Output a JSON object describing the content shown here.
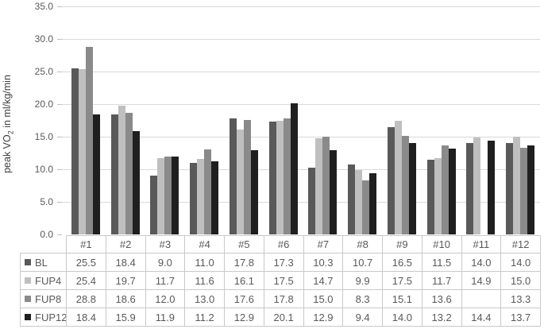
{
  "chart_data": {
    "type": "bar",
    "title": "",
    "ylabel_prefix": "peak VO",
    "ylabel_sub": "2",
    "ylabel_suffix": " in ml/kg/min",
    "categories": [
      "#1",
      "#2",
      "#3",
      "#4",
      "#5",
      "#6",
      "#7",
      "#8",
      "#9",
      "#10",
      "#11",
      "#12"
    ],
    "series": [
      {
        "name": "BL",
        "color": "#595959",
        "values": [
          25.5,
          18.4,
          9.0,
          11.0,
          17.8,
          17.3,
          10.3,
          10.7,
          16.5,
          11.5,
          14.0,
          14.0
        ]
      },
      {
        "name": "FUP4",
        "color": "#bfbfbf",
        "values": [
          25.4,
          19.7,
          11.7,
          11.6,
          16.1,
          17.5,
          14.7,
          9.9,
          17.5,
          11.7,
          14.9,
          15.0
        ]
      },
      {
        "name": "FUP8",
        "color": "#8a8a8a",
        "values": [
          28.8,
          18.6,
          12.0,
          13.0,
          17.6,
          17.8,
          15.0,
          8.3,
          15.1,
          13.6,
          null,
          13.3
        ]
      },
      {
        "name": "FUP12",
        "color": "#1f1f1f",
        "values": [
          18.4,
          15.9,
          11.9,
          11.2,
          12.9,
          20.1,
          12.9,
          9.4,
          14.0,
          13.2,
          14.4,
          13.7
        ]
      }
    ],
    "ylim": [
      0,
      35
    ],
    "ytick_step": 5,
    "ytick_labels": [
      "35.0",
      "30.0",
      "25.0",
      "20.0",
      "15.0",
      "10.0",
      "5.0",
      "0.0"
    ],
    "value_decimals": 1,
    "grid": true,
    "gridline_color": "#d9d9d9",
    "tick_color": "#bfbfbf",
    "axis_text_color": "#595959",
    "table_border_color": "#c9c9c9",
    "background_color": "#ffffff",
    "legend_position": "data-table-left",
    "data_table": true
  }
}
